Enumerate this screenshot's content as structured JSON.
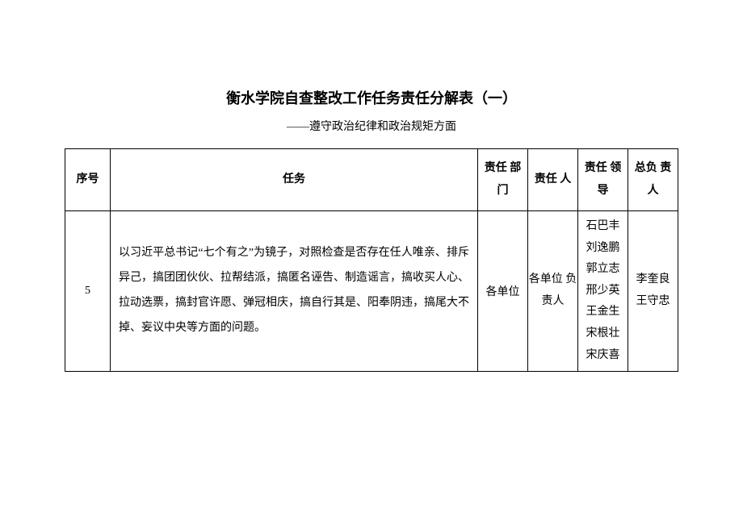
{
  "title": "衡水学院自查整改工作任务责任分解表（一）",
  "subtitle": "——遵守政治纪律和政治规矩方面",
  "table": {
    "columns": [
      "序号",
      "任务",
      "责任\n部门",
      "责任\n人",
      "责任\n领导",
      "总负\n责人"
    ],
    "row": {
      "seq": "5",
      "task": "以习近平总书记“七个有之”为镜子，对照检查是否存在任人唯亲、排斥异己，搞团团伙伙、拉帮结派，搞匿名诬告、制造谣言，搞收买人心、拉动选票，搞封官许愿、弹冠相庆，搞自行其是、阳奉阴违，搞尾大不掉、妄议中央等方面的问题。",
      "dept": "各单位",
      "person": "各单位\n负责人",
      "leaders": "石巴丰\n刘逸鹏\n郭立志\n邢少英\n王金生\n宋根壮\n宋庆喜",
      "chief": "李奎良\n王守忠"
    }
  },
  "style": {
    "background_color": "#ffffff",
    "border_color": "#000000",
    "text_color": "#000000",
    "title_fontsize": 18,
    "body_fontsize": 14
  }
}
